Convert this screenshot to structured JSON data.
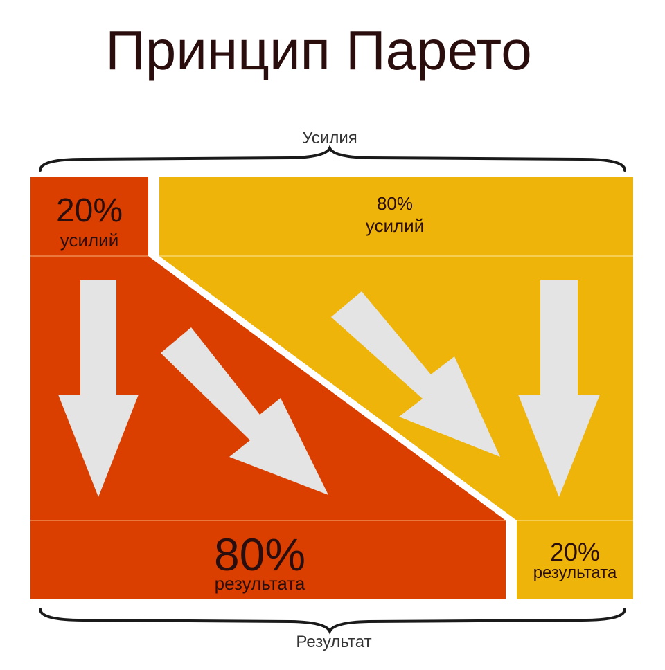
{
  "title": "Принцип Парето",
  "top_label": "Усилия",
  "bottom_label": "Результат",
  "blocks": {
    "effort_small": {
      "percent": "20%",
      "caption": "усилий"
    },
    "effort_large": {
      "percent": "80%",
      "caption": "усилий"
    },
    "result_large": {
      "percent": "80%",
      "caption": "результата"
    },
    "result_small": {
      "percent": "20%",
      "caption": "результата"
    }
  },
  "colors": {
    "red": "#db3f00",
    "yellow": "#efb40a",
    "arrow": "#e4e4e4",
    "text": "#2a0e0e"
  }
}
